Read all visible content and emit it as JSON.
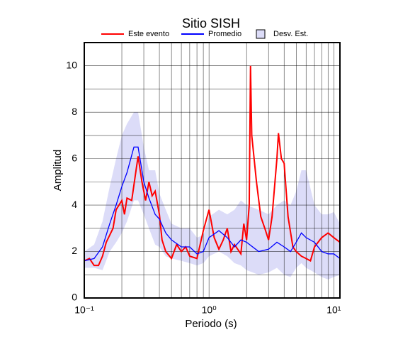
{
  "chart_data": {
    "type": "line",
    "title": "Sitio SISH",
    "xlabel": "Periodo (s)",
    "ylabel": "Amplitud",
    "xscale": "log",
    "xlim": [
      0.1,
      11.2
    ],
    "ylim": [
      0,
      11
    ],
    "xticks": [
      {
        "value": 0.1,
        "label": "10⁻¹"
      },
      {
        "value": 1,
        "label": "10⁰"
      },
      {
        "value": 10,
        "label": "10¹"
      }
    ],
    "xminor": [
      0.2,
      0.3,
      0.4,
      0.5,
      0.6,
      0.7,
      0.8,
      0.9,
      2,
      3,
      4,
      5,
      6,
      7,
      8,
      9
    ],
    "yticks": [
      0,
      2,
      4,
      6,
      8,
      10
    ],
    "yminor": [
      1,
      3,
      5,
      7,
      9,
      11
    ],
    "grid": true,
    "series": [
      {
        "name": "Este evento",
        "color": "#ff0000",
        "x": [
          0.1,
          0.11,
          0.12,
          0.13,
          0.14,
          0.15,
          0.17,
          0.18,
          0.2,
          0.21,
          0.22,
          0.24,
          0.26,
          0.27,
          0.29,
          0.31,
          0.33,
          0.35,
          0.37,
          0.4,
          0.42,
          0.45,
          0.5,
          0.55,
          0.6,
          0.65,
          0.7,
          0.8,
          0.9,
          1.0,
          1.1,
          1.2,
          1.3,
          1.4,
          1.5,
          1.6,
          1.8,
          1.9,
          2.0,
          2.1,
          2.15,
          2.2,
          2.4,
          2.6,
          2.8,
          3.0,
          3.2,
          3.5,
          3.6,
          3.8,
          4.0,
          4.3,
          4.7,
          5.0,
          5.5,
          6.0,
          6.5,
          7.0,
          8.0,
          9.0,
          10,
          11.2
        ],
        "values": [
          1.6,
          1.7,
          1.4,
          1.4,
          1.8,
          2.4,
          3.0,
          3.8,
          4.2,
          3.6,
          4.3,
          4.2,
          5.5,
          6.1,
          5.0,
          4.2,
          5.0,
          4.4,
          4.6,
          3.6,
          2.5,
          2.0,
          1.7,
          2.3,
          2.0,
          2.2,
          1.8,
          1.7,
          2.9,
          3.8,
          2.6,
          2.1,
          2.5,
          3.0,
          2.0,
          2.3,
          1.9,
          3.2,
          2.5,
          4.0,
          10.0,
          7.0,
          5.0,
          3.5,
          3.0,
          2.5,
          3.5,
          6.0,
          7.1,
          6.0,
          5.8,
          3.5,
          2.2,
          2.0,
          1.8,
          1.7,
          1.6,
          2.2,
          2.6,
          2.8,
          2.6,
          2.4
        ]
      },
      {
        "name": "Promedio",
        "color": "#0000ff",
        "x": [
          0.1,
          0.12,
          0.14,
          0.16,
          0.18,
          0.2,
          0.22,
          0.25,
          0.27,
          0.3,
          0.33,
          0.37,
          0.4,
          0.45,
          0.5,
          0.6,
          0.7,
          0.8,
          0.9,
          1.0,
          1.2,
          1.4,
          1.6,
          1.8,
          2.0,
          2.5,
          3.0,
          3.5,
          4.0,
          4.5,
          5.0,
          5.5,
          6.0,
          7.0,
          8.0,
          9.0,
          10,
          11.2
        ],
        "values": [
          1.6,
          1.7,
          2.2,
          3.2,
          4.0,
          4.8,
          5.4,
          6.5,
          6.5,
          5.0,
          4.3,
          3.6,
          3.4,
          2.8,
          2.5,
          2.2,
          2.2,
          1.9,
          2.0,
          2.6,
          2.9,
          2.6,
          2.2,
          2.5,
          2.4,
          2.0,
          2.1,
          2.4,
          2.2,
          2.0,
          2.4,
          2.8,
          2.6,
          2.4,
          2.0,
          1.9,
          1.9,
          1.7
        ]
      },
      {
        "name": "Desv. Est.",
        "color": "#dcdcf8",
        "x": [
          0.1,
          0.12,
          0.14,
          0.16,
          0.18,
          0.2,
          0.22,
          0.25,
          0.27,
          0.3,
          0.33,
          0.37,
          0.4,
          0.45,
          0.5,
          0.6,
          0.7,
          0.8,
          0.9,
          1.0,
          1.2,
          1.4,
          1.6,
          1.8,
          2.0,
          2.5,
          3.0,
          3.5,
          4.0,
          4.5,
          5.0,
          5.5,
          6.0,
          7.0,
          8.0,
          9.0,
          10,
          11.2
        ],
        "upper": [
          2.0,
          2.3,
          3.3,
          4.8,
          6.0,
          7.0,
          7.5,
          8.0,
          8.0,
          6.5,
          5.5,
          5.5,
          4.5,
          3.8,
          3.2,
          3.0,
          3.0,
          2.6,
          2.7,
          3.5,
          3.8,
          3.6,
          3.8,
          4.2,
          4.0,
          3.8,
          3.6,
          4.0,
          4.2,
          4.0,
          4.6,
          5.5,
          5.5,
          4.0,
          3.6,
          3.6,
          3.7,
          3.2
        ],
        "lower": [
          1.3,
          1.3,
          1.2,
          2.0,
          2.4,
          2.8,
          3.3,
          4.2,
          4.2,
          3.6,
          3.0,
          2.3,
          2.2,
          1.8,
          1.7,
          1.6,
          1.5,
          1.4,
          1.5,
          1.8,
          2.0,
          1.8,
          1.5,
          1.4,
          1.2,
          1.0,
          1.1,
          1.3,
          1.0,
          0.9,
          1.3,
          1.5,
          1.3,
          1.1,
          0.9,
          0.8,
          0.9,
          1.0
        ]
      }
    ]
  }
}
